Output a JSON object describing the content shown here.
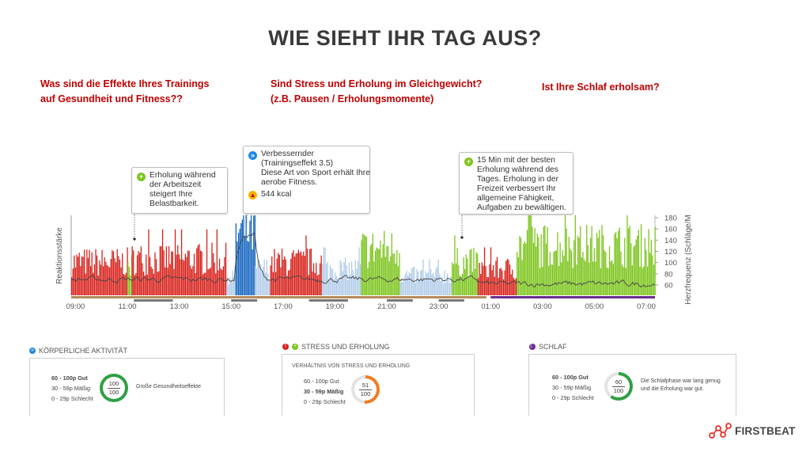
{
  "title": "WIE SIEHT IHR TAG AUS?",
  "questions": {
    "training": [
      "Was sind die Effekte Ihres Trainings",
      "auf Gesundheit und Fitness??"
    ],
    "stress": [
      "Sind Stress und Erholung im Gleichgewicht?",
      "(z.B. Pausen / Erholungsmomente)"
    ],
    "sleep": [
      "Ist Ihre Schlaf erholsam?"
    ]
  },
  "callouts": {
    "work": [
      "Erholung während",
      "der Arbeitszeit",
      "steigert Ihre",
      "Belastbarkeit."
    ],
    "training": {
      "lines": [
        "Verbessernder",
        "(Trainingseffekt 3.5)",
        "Diese Art von Sport erhält Ihre",
        "aerobe Fitness."
      ],
      "kcal": "544 kcal"
    },
    "recovery": [
      "15 Min mit der besten",
      "Erholung während des",
      "Tages. Erholung in der",
      "Freizeit verbessert Ihr",
      "allgemeine Fähigkeit,",
      "Aufgaben zu bewältigen."
    ]
  },
  "chart_data": {
    "type": "area",
    "ylabel_left": "Reaktionsstärke",
    "ylabel_right": "Herzfrequenz (Schläge/M",
    "right_axis_ticks": [
      180,
      160,
      140,
      120,
      100,
      80,
      60
    ],
    "time_ticks": [
      "09:00",
      "11:00",
      "13:00",
      "15:00",
      "17:00",
      "19:00",
      "21:00",
      "23:00",
      "01:00",
      "03:00",
      "05:00",
      "07:00"
    ],
    "stress_color": "#d7221c",
    "recovery_color": "#7dc51e",
    "exercise_color": "#1565c0",
    "light_activity_color": "#b3cdea",
    "heart_rate_color": "#444444",
    "segments": [
      {
        "from": "08:50",
        "to": "11:00",
        "type": "stress",
        "level": 0.5
      },
      {
        "from": "11:00",
        "to": "11:10",
        "type": "recovery",
        "level": 0.45
      },
      {
        "from": "11:10",
        "to": "14:50",
        "type": "stress",
        "level": 0.55
      },
      {
        "from": "14:50",
        "to": "15:10",
        "type": "light",
        "level": 0.3
      },
      {
        "from": "15:10",
        "to": "15:55",
        "type": "exercise",
        "level": 0.95
      },
      {
        "from": "15:55",
        "to": "16:30",
        "type": "light",
        "level": 0.4
      },
      {
        "from": "16:30",
        "to": "18:30",
        "type": "stress",
        "level": 0.5
      },
      {
        "from": "18:30",
        "to": "20:00",
        "type": "light",
        "level": 0.4
      },
      {
        "from": "20:00",
        "to": "21:30",
        "type": "recovery",
        "level": 0.7
      },
      {
        "from": "21:30",
        "to": "23:30",
        "type": "light",
        "level": 0.3
      },
      {
        "from": "23:30",
        "to": "00:30",
        "type": "recovery",
        "level": 0.5
      },
      {
        "from": "00:30",
        "to": "02:00",
        "type": "stress",
        "level": 0.4
      },
      {
        "from": "02:00",
        "to": "07:20",
        "type": "recovery",
        "level": 0.75
      }
    ]
  },
  "panels": {
    "activity": {
      "heading": "KÖRPERLICHE AKTIVITÄT",
      "legend": [
        "60 - 100p Gut",
        "30 - 59p Mäßig",
        "0 - 29p Schlecht"
      ],
      "score": "100",
      "max": "100",
      "ring_color": "#2ea043",
      "ring_pct": 100,
      "note": [
        "Große Gesundheitseffekte"
      ]
    },
    "stress": {
      "heading": "STRESS UND ERHOLUNG",
      "subtitle": "VERHÄLTNIS VON STRESS UND ERHOLUNG",
      "legend": [
        "60 - 100p Gut",
        "30 - 59p Mäßig",
        "0 - 29p Schlecht"
      ],
      "score": "51",
      "max": "100",
      "ring_color": "#ef7d22",
      "ring_pct": 51
    },
    "sleep": {
      "heading": "SCHLAF",
      "legend": [
        "60 - 100p Gut",
        "30 - 59p Mäßig",
        "0 - 29p Schlecht"
      ],
      "score": "60",
      "max": "100",
      "ring_color": "#2ea043",
      "ring_pct": 60,
      "note": [
        "Die Schlafphase war lang genug",
        "und die Erholung war gut."
      ]
    }
  },
  "logo": "FIRSTBEAT"
}
